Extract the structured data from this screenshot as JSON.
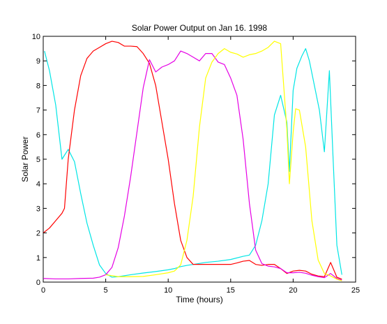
{
  "chart_data": {
    "type": "line",
    "title": "Solar Power Output on Jan 16. 1998",
    "xlabel": "Time (hours)",
    "ylabel": "Solar Power",
    "xlim": [
      0,
      25
    ],
    "ylim": [
      0,
      10
    ],
    "xticks": [
      0,
      5,
      10,
      15,
      20,
      25
    ],
    "yticks": [
      0,
      1,
      2,
      3,
      4,
      5,
      6,
      7,
      8,
      9,
      10
    ],
    "grid": false,
    "legend": "none",
    "series": [
      {
        "color": "#00e5e5",
        "points": [
          [
            0.1,
            9.4
          ],
          [
            0.5,
            8.6
          ],
          [
            1,
            7.2
          ],
          [
            1.5,
            5.0
          ],
          [
            2,
            5.4
          ],
          [
            2.5,
            4.9
          ],
          [
            3,
            3.6
          ],
          [
            3.5,
            2.4
          ],
          [
            4,
            1.5
          ],
          [
            4.5,
            0.7
          ],
          [
            5,
            0.35
          ],
          [
            5.5,
            0.2
          ],
          [
            6,
            0.22
          ],
          [
            7,
            0.3
          ],
          [
            8,
            0.37
          ],
          [
            9,
            0.43
          ],
          [
            10,
            0.5
          ],
          [
            10.5,
            0.55
          ],
          [
            11,
            0.63
          ],
          [
            11.5,
            0.68
          ],
          [
            12,
            0.72
          ],
          [
            13,
            0.8
          ],
          [
            14,
            0.85
          ],
          [
            15,
            0.92
          ],
          [
            16,
            1.05
          ],
          [
            16.5,
            1.1
          ],
          [
            17,
            1.5
          ],
          [
            17.5,
            2.5
          ],
          [
            18,
            4.0
          ],
          [
            18.5,
            6.8
          ],
          [
            19,
            7.6
          ],
          [
            19.5,
            6.5
          ],
          [
            19.7,
            4.5
          ],
          [
            20,
            7.8
          ],
          [
            20.3,
            8.7
          ],
          [
            20.7,
            9.2
          ],
          [
            21,
            9.5
          ],
          [
            21.3,
            9.0
          ],
          [
            21.7,
            8.0
          ],
          [
            22.1,
            7.0
          ],
          [
            22.5,
            5.3
          ],
          [
            22.9,
            8.6
          ],
          [
            23.2,
            5.0
          ],
          [
            23.5,
            1.5
          ],
          [
            23.9,
            0.3
          ]
        ]
      },
      {
        "color": "#ff0000",
        "points": [
          [
            0,
            2.0
          ],
          [
            0.5,
            2.2
          ],
          [
            1,
            2.5
          ],
          [
            1.5,
            2.8
          ],
          [
            1.7,
            3.0
          ],
          [
            2,
            5.0
          ],
          [
            2.5,
            7.0
          ],
          [
            3,
            8.4
          ],
          [
            3.5,
            9.1
          ],
          [
            4,
            9.4
          ],
          [
            4.5,
            9.55
          ],
          [
            5,
            9.7
          ],
          [
            5.5,
            9.8
          ],
          [
            6,
            9.75
          ],
          [
            6.5,
            9.6
          ],
          [
            7,
            9.6
          ],
          [
            7.5,
            9.58
          ],
          [
            8,
            9.3
          ],
          [
            8.5,
            8.9
          ],
          [
            9,
            8.0
          ],
          [
            9.5,
            6.5
          ],
          [
            10,
            5.0
          ],
          [
            10.5,
            3.2
          ],
          [
            11,
            1.7
          ],
          [
            11.5,
            1.0
          ],
          [
            12,
            0.72
          ],
          [
            13,
            0.72
          ],
          [
            14,
            0.72
          ],
          [
            15,
            0.72
          ],
          [
            15.5,
            0.78
          ],
          [
            16,
            0.85
          ],
          [
            16.5,
            0.88
          ],
          [
            17,
            0.72
          ],
          [
            17.5,
            0.68
          ],
          [
            18,
            0.72
          ],
          [
            18.5,
            0.72
          ],
          [
            19,
            0.55
          ],
          [
            19.5,
            0.35
          ],
          [
            20,
            0.45
          ],
          [
            20.5,
            0.48
          ],
          [
            21,
            0.45
          ],
          [
            21.5,
            0.32
          ],
          [
            22,
            0.25
          ],
          [
            22.5,
            0.22
          ],
          [
            23,
            0.8
          ],
          [
            23.5,
            0.2
          ],
          [
            23.9,
            0.12
          ]
        ]
      },
      {
        "color": "#e500e5",
        "points": [
          [
            0,
            0.15
          ],
          [
            1,
            0.13
          ],
          [
            2,
            0.13
          ],
          [
            3,
            0.15
          ],
          [
            4,
            0.16
          ],
          [
            4.5,
            0.2
          ],
          [
            5,
            0.3
          ],
          [
            5.5,
            0.6
          ],
          [
            6,
            1.4
          ],
          [
            6.5,
            2.7
          ],
          [
            7,
            4.3
          ],
          [
            7.5,
            6.1
          ],
          [
            8,
            7.9
          ],
          [
            8.5,
            9.05
          ],
          [
            9,
            8.55
          ],
          [
            9.5,
            8.75
          ],
          [
            10,
            8.85
          ],
          [
            10.5,
            9.0
          ],
          [
            11,
            9.4
          ],
          [
            11.5,
            9.3
          ],
          [
            12,
            9.15
          ],
          [
            12.5,
            9.0
          ],
          [
            13,
            9.3
          ],
          [
            13.5,
            9.3
          ],
          [
            14,
            8.95
          ],
          [
            14.5,
            8.85
          ],
          [
            15,
            8.3
          ],
          [
            15.5,
            7.6
          ],
          [
            16,
            5.8
          ],
          [
            16.5,
            3.2
          ],
          [
            17,
            1.3
          ],
          [
            17.5,
            0.75
          ],
          [
            18,
            0.65
          ],
          [
            18.5,
            0.62
          ],
          [
            19,
            0.55
          ],
          [
            19.5,
            0.38
          ],
          [
            20,
            0.38
          ],
          [
            20.5,
            0.4
          ],
          [
            21,
            0.36
          ],
          [
            21.5,
            0.28
          ],
          [
            22,
            0.22
          ],
          [
            22.5,
            0.18
          ],
          [
            23,
            0.35
          ],
          [
            23.5,
            0.15
          ],
          [
            23.9,
            0.08
          ]
        ]
      },
      {
        "color": "#ffff00",
        "points": [
          [
            5,
            0.3
          ],
          [
            6,
            0.22
          ],
          [
            7,
            0.22
          ],
          [
            8,
            0.23
          ],
          [
            9,
            0.3
          ],
          [
            10,
            0.38
          ],
          [
            10.5,
            0.45
          ],
          [
            11,
            0.7
          ],
          [
            11.5,
            1.7
          ],
          [
            12,
            3.5
          ],
          [
            12.5,
            6.3
          ],
          [
            13,
            8.3
          ],
          [
            13.5,
            8.95
          ],
          [
            14,
            9.3
          ],
          [
            14.5,
            9.5
          ],
          [
            15,
            9.35
          ],
          [
            15.5,
            9.28
          ],
          [
            16,
            9.15
          ],
          [
            16.5,
            9.25
          ],
          [
            17,
            9.3
          ],
          [
            17.5,
            9.4
          ],
          [
            18,
            9.55
          ],
          [
            18.5,
            9.8
          ],
          [
            19,
            9.7
          ],
          [
            19.5,
            6.2
          ],
          [
            19.7,
            4.0
          ],
          [
            20,
            6.1
          ],
          [
            20.2,
            7.05
          ],
          [
            20.5,
            7.0
          ],
          [
            21,
            5.5
          ],
          [
            21.5,
            2.5
          ],
          [
            22,
            0.9
          ],
          [
            22.5,
            0.35
          ],
          [
            23,
            0.25
          ],
          [
            23.5,
            0.12
          ],
          [
            23.9,
            0.05
          ]
        ]
      }
    ]
  }
}
